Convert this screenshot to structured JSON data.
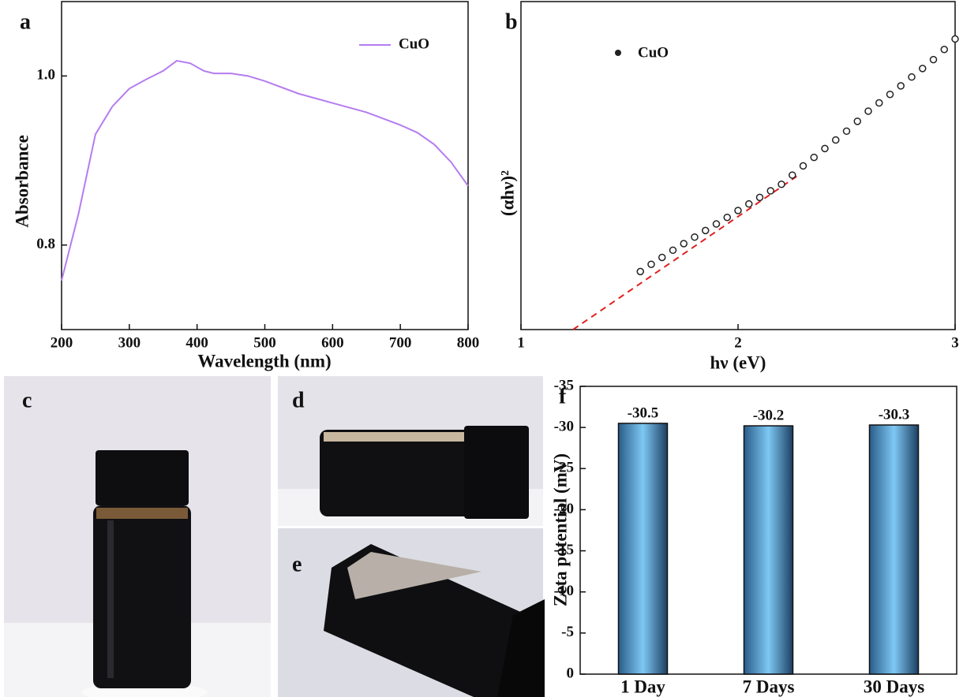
{
  "chart_data": [
    {
      "type": "line",
      "panel": "a",
      "xlabel": "Wavelength (nm)",
      "ylabel": "Absorbance",
      "x": [
        200,
        225,
        250,
        275,
        300,
        325,
        350,
        370,
        390,
        410,
        425,
        450,
        475,
        500,
        550,
        600,
        650,
        700,
        725,
        750,
        775,
        800
      ],
      "series": [
        {
          "name": "CuO",
          "color": "#b57cf0",
          "values": [
            0.758,
            0.837,
            0.931,
            0.964,
            0.985,
            0.996,
            1.006,
            1.018,
            1.015,
            1.006,
            1.003,
            1.003,
            1.0,
            0.994,
            0.979,
            0.968,
            0.957,
            0.942,
            0.933,
            0.919,
            0.898,
            0.87
          ]
        }
      ],
      "xlim": [
        200,
        800
      ],
      "xticks": [
        200,
        300,
        400,
        500,
        600,
        700,
        800
      ],
      "ylim": [
        0.7,
        1.088
      ],
      "yticks": [
        0.8,
        {
          "value": 1,
          "label": "1.0"
        }
      ]
    },
    {
      "type": "scatter",
      "panel": "b",
      "xlabel": "hν (eV)",
      "ylabel": "(αhν)²",
      "x": [
        1.55,
        1.6,
        1.65,
        1.7,
        1.75,
        1.8,
        1.85,
        1.9,
        1.95,
        2.0,
        2.05,
        2.1,
        2.15,
        2.2,
        2.25,
        2.3,
        2.35,
        2.4,
        2.45,
        2.5,
        2.55,
        2.6,
        2.65,
        2.7,
        2.75,
        2.8,
        2.85,
        2.9,
        2.95,
        3.0
      ],
      "series": [
        {
          "name": "CuO",
          "color": "#222222",
          "values": [
            1.77,
            1.99,
            2.2,
            2.42,
            2.62,
            2.82,
            3.02,
            3.22,
            3.42,
            3.63,
            3.83,
            4.03,
            4.23,
            4.43,
            4.71,
            4.99,
            5.25,
            5.52,
            5.78,
            6.05,
            6.35,
            6.66,
            6.91,
            7.17,
            7.43,
            7.7,
            7.96,
            8.23,
            8.54,
            8.86
          ]
        }
      ],
      "fit": {
        "x": [
          1.24,
          2.27
        ],
        "values": [
          0,
          4.67
        ],
        "color": "#e02020"
      },
      "xlim": [
        1,
        3
      ],
      "xticks": [
        1,
        2,
        3
      ],
      "ylim": [
        0,
        10
      ]
    },
    {
      "type": "bar",
      "panel": "f",
      "ylabel": "Zeta potential (mV)",
      "categories": [
        "1 Day",
        "7 Days",
        "30 Days"
      ],
      "values": [
        -30.5,
        -30.2,
        -30.3
      ],
      "ylim": [
        0,
        -35
      ],
      "yticks": [
        0,
        -5,
        -10,
        -15,
        -20,
        -25,
        -30,
        -35
      ]
    }
  ],
  "photos": [
    {
      "label": "c"
    },
    {
      "label": "d"
    },
    {
      "label": "e"
    }
  ]
}
